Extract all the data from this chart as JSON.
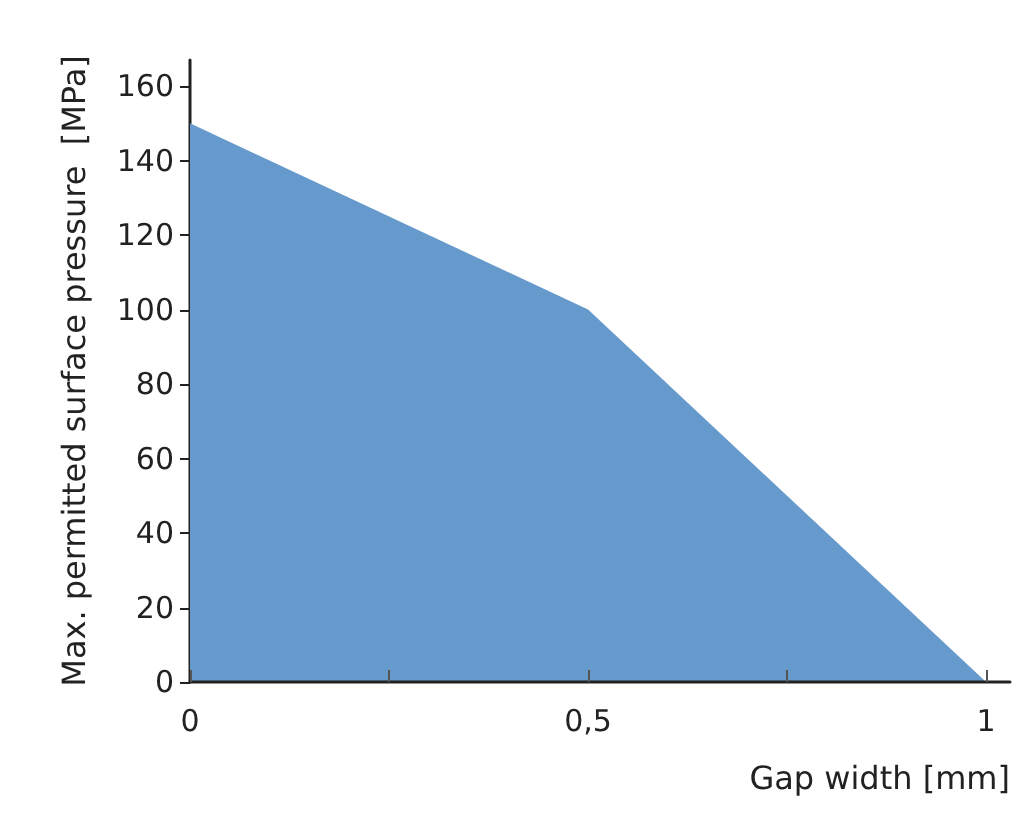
{
  "chart_data": {
    "type": "area",
    "xlabel": "Gap width [mm]",
    "ylabel": "Max. permitted surface pressure  [MPa]",
    "x": [
      0,
      0.5,
      1
    ],
    "series": [
      {
        "color": "#6699cc",
        "values": [
          150,
          100,
          0
        ]
      }
    ],
    "xlim": [
      0,
      1.03
    ],
    "xticks": [
      0,
      {
        "value": 0.25,
        "label": null
      },
      {
        "value": 0.5,
        "label": "0,5"
      },
      {
        "value": 0.75,
        "label": null
      },
      1
    ],
    "ylim": [
      0,
      167
    ],
    "yticks": [
      0,
      20,
      40,
      60,
      80,
      100,
      120,
      140,
      160
    ],
    "grid": false
  }
}
